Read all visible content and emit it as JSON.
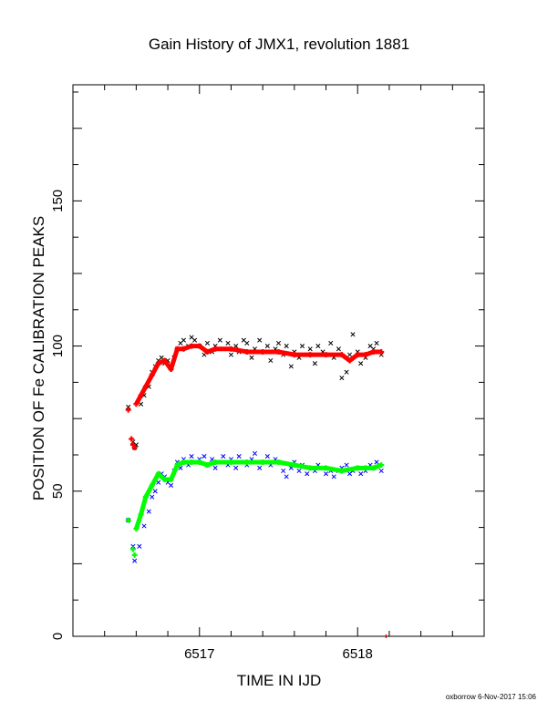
{
  "chart_data": {
    "type": "scatter",
    "title": "Gain History of JMX1, revolution 1881",
    "xlabel": "TIME IN IJD",
    "ylabel": "POSITION OF Fe CALIBRATION PEAKS",
    "xlim": [
      6516.2,
      6518.8
    ],
    "ylim": [
      0,
      190
    ],
    "xticks": [
      6517,
      6518
    ],
    "yticks": [
      0,
      50,
      100,
      150
    ],
    "grid": false,
    "footer": "oxborrow 6-Nov-2017 15:06",
    "colors": {
      "upper_points": "#000000",
      "upper_fit": "#ff0000",
      "lower_points": "#0000ff",
      "lower_fit": "#00ff00"
    },
    "series": [
      {
        "marker": "x",
        "color": "#000000",
        "x": [
          6516.55,
          6516.58,
          6516.59,
          6516.6,
          6516.63,
          6516.65,
          6516.68,
          6516.7,
          6516.72,
          6516.74,
          6516.76,
          6516.78,
          6516.8,
          6516.82,
          6516.84,
          6516.86,
          6516.88,
          6516.9,
          6516.93,
          6516.95,
          6516.97,
          6517.0,
          6517.03,
          6517.05,
          6517.08,
          6517.1,
          6517.13,
          6517.15,
          6517.18,
          6517.2,
          6517.23,
          6517.25,
          6517.28,
          6517.3,
          6517.33,
          6517.35,
          6517.38,
          6517.4,
          6517.43,
          6517.45,
          6517.48,
          6517.5,
          6517.53,
          6517.55,
          6517.58,
          6517.6,
          6517.63,
          6517.65,
          6517.68,
          6517.7,
          6517.73,
          6517.75,
          6517.78,
          6517.8,
          6517.83,
          6517.85,
          6517.88,
          6517.9,
          6517.93,
          6517.95,
          6517.97,
          6518.0,
          6518.02,
          6518.05,
          6518.08,
          6518.1,
          6518.12,
          6518.15
        ],
        "y": [
          79,
          67,
          65,
          66,
          80,
          83,
          86,
          91,
          93,
          95,
          96,
          94,
          95,
          93,
          96,
          99,
          101,
          102,
          100,
          103,
          102,
          100,
          97,
          101,
          98,
          100,
          102,
          99,
          101,
          97,
          100,
          98,
          102,
          101,
          96,
          99,
          102,
          98,
          100,
          95,
          99,
          101,
          97,
          100,
          93,
          98,
          96,
          100,
          97,
          99,
          94,
          100,
          98,
          97,
          101,
          96,
          99,
          89,
          91,
          97,
          104,
          98,
          94,
          96,
          100,
          99,
          101,
          97
        ]
      },
      {
        "marker": "+",
        "color": "#ff0000",
        "x": [
          6516.55,
          6516.57,
          6516.58,
          6516.59,
          6516.6,
          6516.63,
          6516.66,
          6516.7,
          6516.74,
          6516.78,
          6516.82,
          6516.86,
          6516.9,
          6516.95,
          6517.0,
          6517.05,
          6517.1,
          6517.2,
          6517.3,
          6517.4,
          6517.5,
          6517.6,
          6517.7,
          6517.8,
          6517.9,
          6517.95,
          6518.0,
          6518.05,
          6518.1,
          6518.15
        ],
        "y": [
          78,
          68,
          66,
          65,
          80,
          83,
          86,
          90,
          94,
          95,
          92,
          99,
          99,
          100,
          100,
          98,
          99,
          99,
          98,
          98,
          98,
          97,
          97,
          97,
          97,
          95,
          97,
          97,
          98,
          98
        ]
      },
      {
        "marker": "x",
        "color": "#0000ff",
        "x": [
          6516.55,
          6516.58,
          6516.59,
          6516.62,
          6516.65,
          6516.68,
          6516.7,
          6516.72,
          6516.74,
          6516.76,
          6516.78,
          6516.8,
          6516.82,
          6516.84,
          6516.86,
          6516.88,
          6516.9,
          6516.93,
          6516.95,
          6516.97,
          6517.0,
          6517.03,
          6517.05,
          6517.08,
          6517.1,
          6517.13,
          6517.15,
          6517.18,
          6517.2,
          6517.23,
          6517.25,
          6517.28,
          6517.3,
          6517.33,
          6517.35,
          6517.38,
          6517.4,
          6517.43,
          6517.45,
          6517.48,
          6517.5,
          6517.53,
          6517.55,
          6517.58,
          6517.6,
          6517.63,
          6517.65,
          6517.68,
          6517.7,
          6517.73,
          6517.75,
          6517.78,
          6517.8,
          6517.83,
          6517.85,
          6517.88,
          6517.9,
          6517.93,
          6517.95,
          6517.97,
          6518.0,
          6518.02,
          6518.05,
          6518.08,
          6518.1,
          6518.12,
          6518.15
        ],
        "y": [
          40,
          31,
          26,
          31,
          38,
          43,
          48,
          50,
          53,
          56,
          55,
          53,
          52,
          57,
          60,
          58,
          61,
          59,
          62,
          60,
          61,
          62,
          59,
          61,
          58,
          60,
          62,
          59,
          61,
          58,
          62,
          60,
          59,
          61,
          63,
          58,
          60,
          62,
          59,
          61,
          60,
          57,
          55,
          58,
          60,
          57,
          59,
          56,
          58,
          57,
          59,
          58,
          56,
          57,
          55,
          57,
          58,
          59,
          56,
          57,
          58,
          56,
          57,
          59,
          58,
          60,
          57
        ]
      },
      {
        "marker": "+",
        "color": "#00ff00",
        "x": [
          6516.55,
          6516.58,
          6516.59,
          6516.6,
          6516.63,
          6516.66,
          6516.7,
          6516.74,
          6516.78,
          6516.82,
          6516.86,
          6516.9,
          6516.95,
          6517.0,
          6517.05,
          6517.1,
          6517.2,
          6517.3,
          6517.4,
          6517.5,
          6517.6,
          6517.7,
          6517.8,
          6517.9,
          6518.0,
          6518.05,
          6518.1,
          6518.15
        ],
        "y": [
          40,
          30,
          28,
          37,
          42,
          48,
          52,
          56,
          54,
          54,
          59,
          60,
          60,
          60,
          59,
          60,
          60,
          60,
          60,
          60,
          59,
          58,
          58,
          57,
          58,
          58,
          58,
          59
        ]
      }
    ]
  }
}
